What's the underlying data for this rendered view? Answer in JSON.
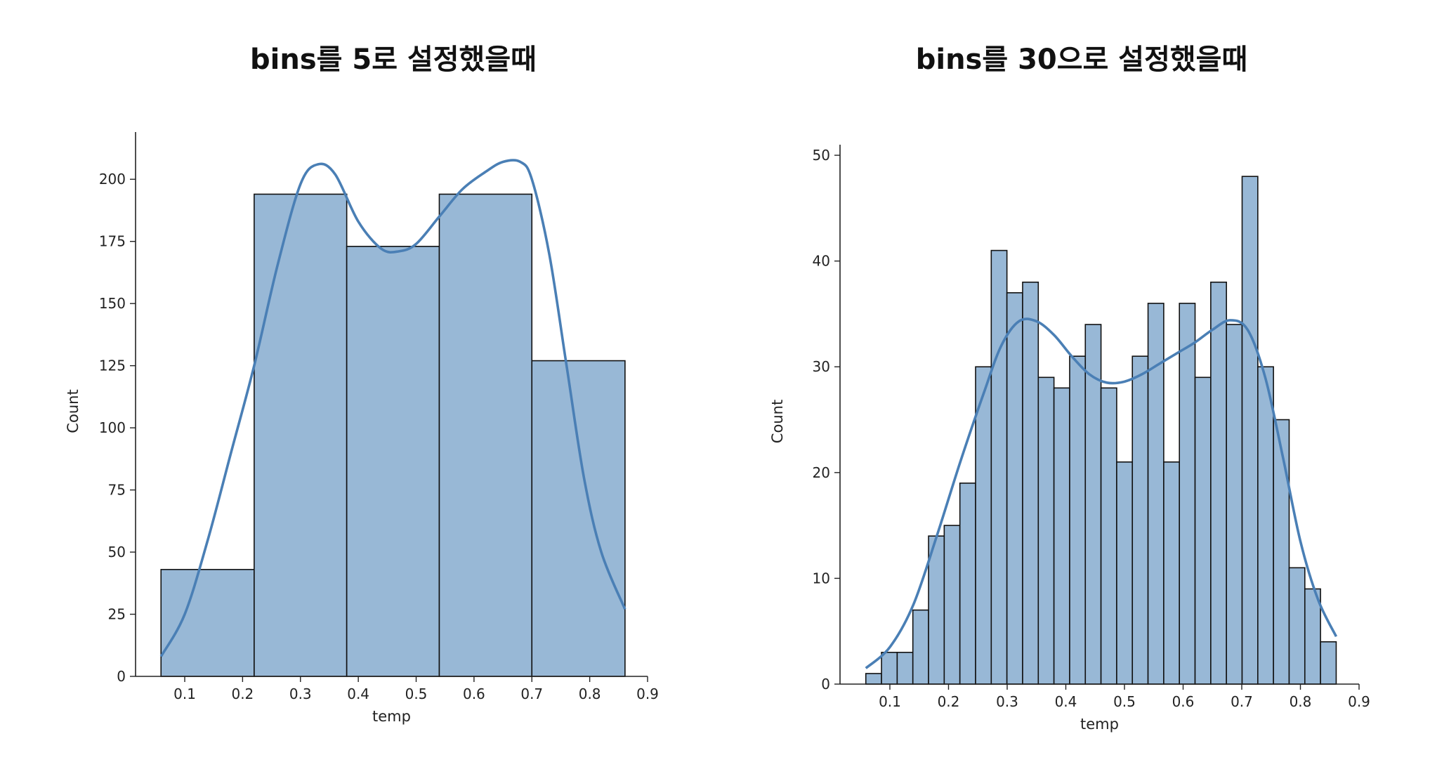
{
  "chart_data": [
    {
      "type": "bar",
      "title": "bins를 5로 설정했을때",
      "xlabel": "temp",
      "ylabel": "Count",
      "xlim": [
        0.015,
        0.9
      ],
      "ylim": [
        0,
        219
      ],
      "xticks": [
        0.1,
        0.2,
        0.3,
        0.4,
        0.5,
        0.6,
        0.7,
        0.8,
        0.9
      ],
      "yticks": [
        0,
        25,
        50,
        75,
        100,
        125,
        150,
        175,
        200
      ],
      "bin_edges": [
        0.059,
        0.22,
        0.38,
        0.54,
        0.7,
        0.861
      ],
      "values": [
        43,
        194,
        173,
        194,
        127
      ],
      "bar_color": "#98b8d6",
      "bar_edge_color": "#111111",
      "kde_color": "#4a7fb5",
      "kde": {
        "x": [
          0.059,
          0.1,
          0.14,
          0.18,
          0.22,
          0.26,
          0.3,
          0.33,
          0.36,
          0.4,
          0.44,
          0.47,
          0.5,
          0.54,
          0.58,
          0.62,
          0.65,
          0.68,
          0.7,
          0.73,
          0.76,
          0.79,
          0.82,
          0.861
        ],
        "y": [
          8,
          25,
          55,
          90,
          125,
          165,
          198,
          206,
          202,
          183,
          172,
          171,
          174,
          185,
          196,
          203,
          207,
          207,
          200,
          170,
          125,
          80,
          50,
          27
        ]
      },
      "grid": false,
      "legend": "none"
    },
    {
      "type": "bar",
      "title": "bins를 30으로 설정했을때",
      "xlabel": "temp",
      "ylabel": "Count",
      "xlim": [
        0.015,
        0.9
      ],
      "ylim": [
        0,
        51
      ],
      "xticks": [
        0.1,
        0.2,
        0.3,
        0.4,
        0.5,
        0.6,
        0.7,
        0.8,
        0.9
      ],
      "yticks": [
        0,
        10,
        20,
        30,
        40,
        50
      ],
      "bin_start": 0.059,
      "bin_end": 0.861,
      "values": [
        1,
        3,
        3,
        7,
        14,
        15,
        19,
        30,
        41,
        37,
        38,
        29,
        28,
        31,
        34,
        28,
        21,
        31,
        36,
        21,
        36,
        29,
        38,
        34,
        48,
        30,
        25,
        11,
        9,
        4
      ],
      "bar_color": "#98b8d6",
      "bar_edge_color": "#111111",
      "kde_color": "#4a7fb5",
      "kde": {
        "x": [
          0.059,
          0.1,
          0.14,
          0.18,
          0.22,
          0.26,
          0.29,
          0.32,
          0.35,
          0.38,
          0.41,
          0.44,
          0.47,
          0.5,
          0.53,
          0.56,
          0.59,
          0.62,
          0.65,
          0.68,
          0.71,
          0.74,
          0.77,
          0.8,
          0.83,
          0.861
        ],
        "y": [
          1.5,
          3.5,
          7.5,
          14,
          21,
          27.5,
          32,
          34.3,
          34.3,
          33,
          31,
          29.3,
          28.5,
          28.6,
          29.3,
          30.3,
          31.3,
          32.3,
          33.5,
          34.4,
          33.5,
          29,
          21.5,
          13.5,
          8,
          4.5
        ]
      },
      "grid": false,
      "legend": "none"
    }
  ]
}
